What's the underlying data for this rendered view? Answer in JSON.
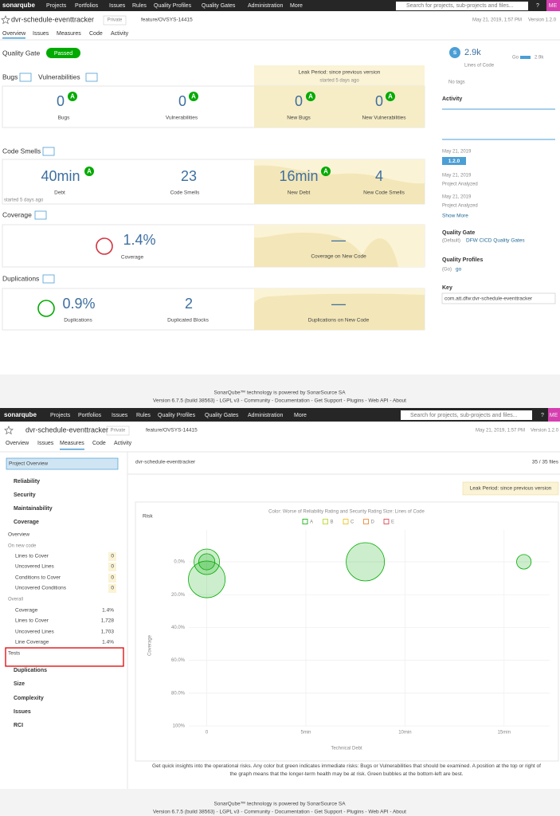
{
  "nav": {
    "logo": "sonarqube",
    "items": [
      "Projects",
      "Portfolios",
      "Issues",
      "Rules",
      "Quality Profiles",
      "Quality Gates",
      "Administration",
      "More"
    ],
    "search": "Search for projects, sub-projects and files...",
    "help": "?",
    "avatar": "ME"
  },
  "project": {
    "name": "dvr-schedule-eventtracker",
    "visibility": "Private",
    "branch": "feature/OVSYS-14415",
    "analysis_date": "May 21, 2019, 1:57 PM",
    "version": "Version 1.2.0",
    "tabs": [
      "Overview",
      "Issues",
      "Measures",
      "Code",
      "Activity"
    ]
  },
  "overview": {
    "quality_gate": {
      "label": "Quality Gate",
      "status": "Passed"
    },
    "leak_period": {
      "title": "Leak Period: since previous version",
      "started": "started 5 days ago"
    },
    "reliability": {
      "titles": [
        "Bugs",
        "Vulnerabilities"
      ],
      "measures": [
        {
          "value": "0",
          "rating": "A",
          "label": "Bugs"
        },
        {
          "value": "0",
          "rating": "A",
          "label": "Vulnerabilities"
        },
        {
          "value": "0",
          "rating": "A",
          "label": "New Bugs"
        },
        {
          "value": "0",
          "rating": "A",
          "label": "New Vulnerabilities"
        }
      ]
    },
    "code_smells": {
      "title": "Code Smells",
      "started": "started 5 days ago",
      "measures": [
        {
          "value": "40min",
          "rating": "A",
          "label": "Debt"
        },
        {
          "value": "23",
          "label": "Code Smells"
        },
        {
          "value": "16min",
          "rating": "A",
          "label": "New Debt"
        },
        {
          "value": "4",
          "label": "New Code Smells"
        }
      ]
    },
    "coverage": {
      "title": "Coverage",
      "measures": [
        {
          "value": "1.4%",
          "label": "Coverage"
        },
        {
          "value": "—",
          "label": "Coverage on New Code"
        }
      ]
    },
    "duplications": {
      "title": "Duplications",
      "measures": [
        {
          "value": "0.9%",
          "label": "Duplications"
        },
        {
          "value": "2",
          "label": "Duplicated Blocks"
        },
        {
          "value": "—",
          "label": "Duplications on New Code"
        }
      ]
    },
    "sidebar": {
      "size_badge": "S",
      "loc": "2.9k",
      "loc_label": "Lines of Code",
      "language": "Go",
      "language_loc": "2.9k",
      "tags": "No tags",
      "activity_title": "Activity",
      "events": [
        {
          "date": "May 21, 2019",
          "version": "1.2.0"
        },
        {
          "date": "May 21, 2019",
          "text": "Project Analyzed"
        },
        {
          "date": "May 21, 2019",
          "text": "Project Analyzed"
        }
      ],
      "show_more": "Show More",
      "quality_gate": {
        "title": "Quality Gate",
        "qualifier": "(Default)",
        "name": "DFW CICD Quality Gates"
      },
      "quality_profiles": {
        "title": "Quality Profiles",
        "qualifier": "(Go)",
        "name": "go"
      },
      "key": {
        "title": "Key",
        "value": "com.att.dfw:dvr-schedule-eventtracker"
      }
    }
  },
  "measures": {
    "sidebar": {
      "project_overview": "Project Overview",
      "domains": [
        "Reliability",
        "Security",
        "Maintainability",
        "Coverage"
      ],
      "overview": "Overview",
      "new_code_header": "On new code",
      "new_code": [
        {
          "label": "Lines to Cover",
          "value": "0"
        },
        {
          "label": "Uncovered Lines",
          "value": "0"
        },
        {
          "label": "Conditions to Cover",
          "value": "0"
        },
        {
          "label": "Uncovered Conditions",
          "value": "0"
        }
      ],
      "overall_header": "Overall",
      "overall": [
        {
          "label": "Coverage",
          "value": "1.4%"
        },
        {
          "label": "Lines to Cover",
          "value": "1,728"
        },
        {
          "label": "Uncovered Lines",
          "value": "1,703"
        },
        {
          "label": "Line Coverage",
          "value": "1.4%"
        }
      ],
      "tests": "Tests",
      "more_domains": [
        "Duplications",
        "Size",
        "Complexity",
        "Issues",
        "RCI"
      ]
    },
    "main": {
      "component": "dvr-schedule-eventtracker",
      "files": "35 / 35 files",
      "leak": "Leak Period: since previous version"
    },
    "bubble_chart": {
      "type": "bubble",
      "title": "Risk",
      "subtitle": "Color: Worse of Reliability Rating and Security Rating  Size: Lines of Code",
      "legend": [
        "A",
        "B",
        "C",
        "D",
        "E"
      ],
      "legend_colors": [
        "#00aa00",
        "#b0d513",
        "#eabe06",
        "#ed7d20",
        "#d4333f"
      ],
      "x_label": "Technical Debt",
      "y_label": "Coverage",
      "y_inverted": true,
      "xlim": [
        -3.4,
        17.3
      ],
      "ylim": [
        -19.4,
        101.9
      ],
      "xticks": [
        0,
        {
          "value": 5,
          "label": "5min"
        },
        {
          "value": 10,
          "label": "10min"
        },
        {
          "value": 15,
          "label": "15min"
        }
      ],
      "yticks": [
        {
          "value": 0,
          "label": "0.0%"
        },
        {
          "value": 20,
          "label": "20.0%"
        },
        {
          "value": 40,
          "label": "40.0%"
        },
        {
          "value": 60,
          "label": "60.0%"
        },
        {
          "value": 80,
          "label": "80.0%"
        },
        {
          "value": 100,
          "label": "100%"
        }
      ],
      "points": {
        "x": [
          8,
          0,
          0,
          0,
          16
        ],
        "y": [
          0,
          10.7,
          0,
          0,
          0
        ],
        "size": [
          900,
          830,
          400,
          160,
          130
        ],
        "rating": [
          "A",
          "A",
          "A",
          "A",
          "A"
        ]
      },
      "description": "Get quick insights into the operational risks. Any color but green indicates immediate risks: Bugs or Vulnerabilities that should be examined. A position at the top or right of the graph means that the longer-term health may be at risk. Green bubbles at the bottom-left are best."
    }
  },
  "footer": {
    "line1": "SonarQube™ technology is powered by SonarSource SA",
    "line2": "Version 6.7.5 (build 38563) - LGPL v3 - Community - Documentation - Get Support - Plugins - Web API - About"
  }
}
